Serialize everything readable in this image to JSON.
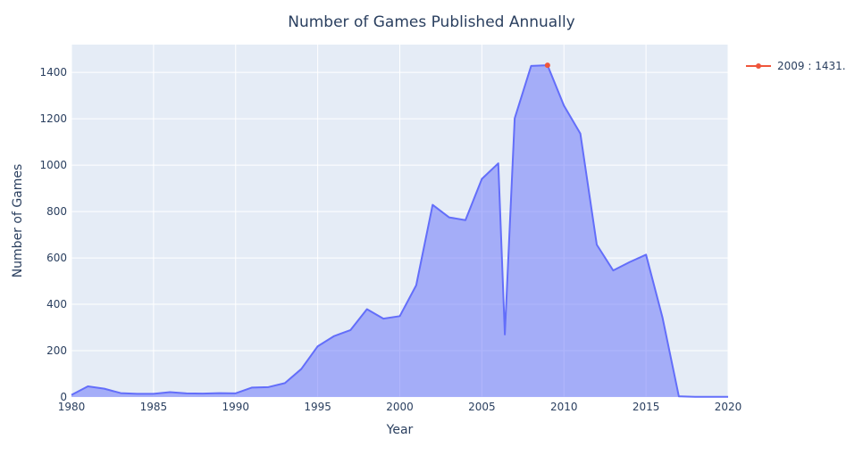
{
  "chart_data": {
    "type": "area",
    "title": "Number of Games Published Annually",
    "xlabel": "Year",
    "ylabel": "Number of Games",
    "xlim": [
      1980,
      2020
    ],
    "ylim": [
      0,
      1520
    ],
    "xticks": [
      1980,
      1985,
      1990,
      1995,
      2000,
      2005,
      2010,
      2015,
      2020
    ],
    "yticks": [
      0,
      200,
      400,
      600,
      800,
      1000,
      1200,
      1400
    ],
    "grid": true,
    "legend_position": "top-right",
    "colors": {
      "plot_bg": "#E5ECF6",
      "line": "#636EFA",
      "fill": "rgba(99,110,250,0.5)",
      "highlight": "#EF553B"
    },
    "series": [
      {
        "x": [
          1980,
          1981,
          1982,
          1983,
          1984,
          1985,
          1986,
          1987,
          1988,
          1989,
          1990,
          1991,
          1992,
          1993,
          1994,
          1995,
          1996,
          1997,
          1998,
          1999,
          2000,
          2001,
          2002,
          2003,
          2004,
          2005,
          2006,
          2006.4,
          2007,
          2008,
          2009,
          2010,
          2011,
          2012,
          2013,
          2014,
          2015,
          2016,
          2017,
          2018,
          2019,
          2020
        ],
        "y": [
          9,
          46,
          36,
          17,
          14,
          14,
          21,
          16,
          15,
          17,
          16,
          41,
          43,
          60,
          121,
          219,
          263,
          289,
          379,
          338,
          349,
          482,
          829,
          775,
          763,
          941,
          1008,
          270,
          1202,
          1428,
          1431,
          1257,
          1136,
          657,
          546,
          582,
          614,
          344,
          3,
          1,
          1,
          1
        ]
      }
    ],
    "highlight": {
      "x": 2009,
      "y": 1431,
      "legend_label": "2009 : 1431."
    }
  }
}
